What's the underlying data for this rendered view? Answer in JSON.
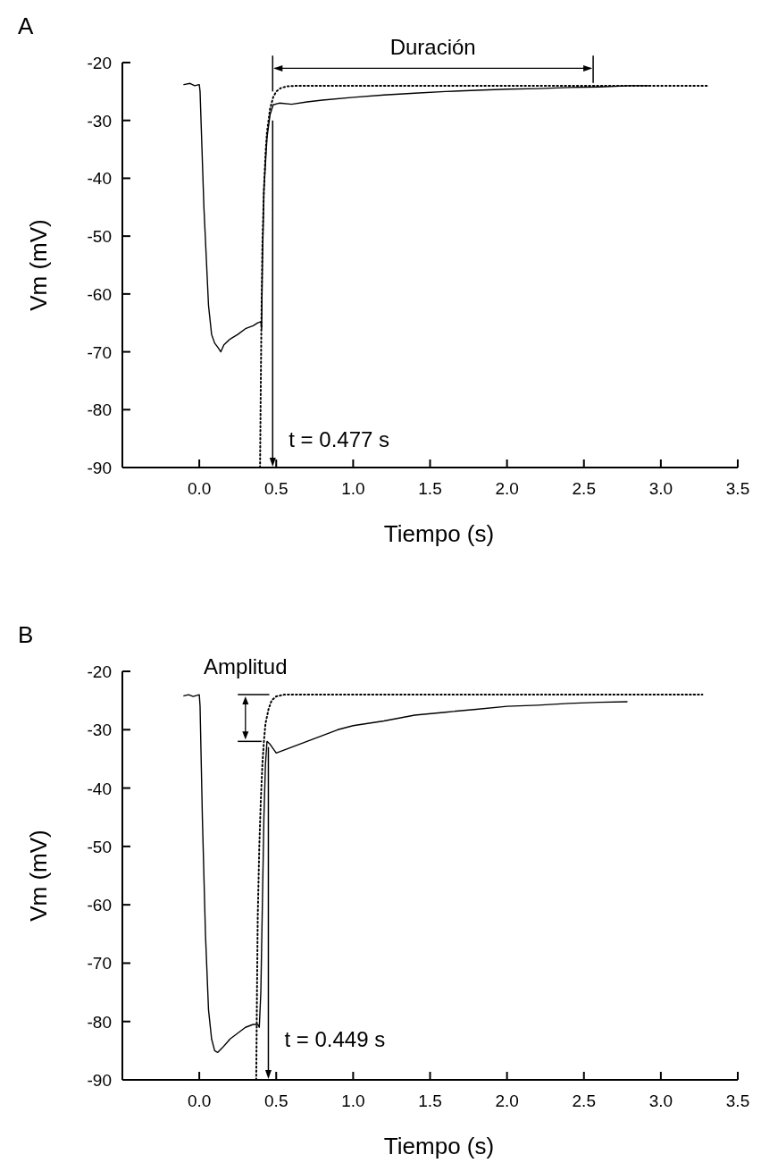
{
  "chart_data": [
    {
      "type": "line",
      "title": "A",
      "xlabel": "Tiempo (s)",
      "ylabel": "Vm (mV)",
      "xlim": [
        -0.5,
        3.5
      ],
      "ylim": [
        -90,
        -20
      ],
      "xticks": [
        {
          "value": 0,
          "label": "0.0"
        },
        {
          "value": 0.5,
          "label": "0.5"
        },
        {
          "value": 1,
          "label": "1.0"
        },
        {
          "value": 1.5,
          "label": "1.5"
        },
        {
          "value": 2,
          "label": "2.0"
        },
        {
          "value": 2.5,
          "label": "2.5"
        },
        {
          "value": 3,
          "label": "3.0"
        },
        {
          "value": 3.5,
          "label": "3.5"
        }
      ],
      "yticks": [
        -90,
        -80,
        -70,
        -60,
        -50,
        -40,
        -30,
        -20
      ],
      "grid": false,
      "marker": "none",
      "annotations": [
        "Duración"
      ],
      "ref_lines": [
        {
          "axis": "x",
          "value": 0.477,
          "label": "t = 0.477 s",
          "color": "#000000"
        }
      ],
      "series": [
        {
          "color": "#000000",
          "line_style": "solid",
          "x": [
            -0.1,
            -0.06,
            -0.03,
            0.0,
            0.005,
            0.03,
            0.06,
            0.08,
            0.1,
            0.12,
            0.14,
            0.16,
            0.2,
            0.25,
            0.3,
            0.35,
            0.38,
            0.4,
            0.405,
            0.41,
            0.42,
            0.44,
            0.46,
            0.48,
            0.52,
            0.6,
            0.7,
            0.8,
            1.0,
            1.2,
            1.4,
            1.6,
            1.8,
            2.0,
            2.2,
            2.4,
            2.6,
            2.8,
            2.92
          ],
          "values": [
            -23.8,
            -23.6,
            -24.0,
            -23.8,
            -25,
            -45,
            -62,
            -67,
            -68.5,
            -69.2,
            -70,
            -68.8,
            -67.8,
            -67,
            -66,
            -65.5,
            -65,
            -64.8,
            -66,
            -55,
            -42,
            -33,
            -29,
            -27.3,
            -27,
            -27.2,
            -26.8,
            -26.5,
            -26,
            -25.6,
            -25.3,
            -25,
            -24.8,
            -24.6,
            -24.5,
            -24.3,
            -24.2,
            -24,
            -24
          ]
        },
        {
          "color": "#000000",
          "line_style": "dotted",
          "x": [
            0.395,
            0.4,
            0.405,
            0.41,
            0.42,
            0.43,
            0.44,
            0.46,
            0.48,
            0.5,
            0.53,
            0.57,
            0.65,
            0.8,
            3.3
          ],
          "values": [
            -90,
            -75,
            -62,
            -52,
            -42,
            -36,
            -32,
            -28,
            -26,
            -25,
            -24.4,
            -24.1,
            -24,
            -24,
            -24
          ]
        }
      ]
    },
    {
      "type": "line",
      "title": "B",
      "xlabel": "Tiempo (s)",
      "ylabel": "Vm (mV)",
      "xlim": [
        -0.5,
        3.5
      ],
      "ylim": [
        -90,
        -20
      ],
      "xticks": [
        {
          "value": 0,
          "label": "0.0"
        },
        {
          "value": 0.5,
          "label": "0.5"
        },
        {
          "value": 1,
          "label": "1.0"
        },
        {
          "value": 1.5,
          "label": "1.5"
        },
        {
          "value": 2,
          "label": "2.0"
        },
        {
          "value": 2.5,
          "label": "2.5"
        },
        {
          "value": 3,
          "label": "3.0"
        },
        {
          "value": 3.5,
          "label": "3.5"
        }
      ],
      "yticks": [
        -90,
        -80,
        -70,
        -60,
        -50,
        -40,
        -30,
        -20
      ],
      "grid": false,
      "marker": "none",
      "annotations": [
        "Amplitud"
      ],
      "ref_lines": [
        {
          "axis": "x",
          "value": 0.449,
          "label": "t = 0.449 s",
          "color": "#000000"
        }
      ],
      "series": [
        {
          "color": "#000000",
          "line_style": "solid",
          "x": [
            -0.1,
            -0.07,
            -0.04,
            0.0,
            0.005,
            0.02,
            0.04,
            0.06,
            0.08,
            0.1,
            0.12,
            0.15,
            0.2,
            0.25,
            0.3,
            0.35,
            0.38,
            0.39,
            0.4,
            0.41,
            0.42,
            0.43,
            0.44,
            0.46,
            0.5,
            0.55,
            0.6,
            0.7,
            0.8,
            0.9,
            1.0,
            1.2,
            1.4,
            1.6,
            1.8,
            2.0,
            2.2,
            2.4,
            2.6,
            2.78
          ],
          "values": [
            -24.2,
            -24.0,
            -24.3,
            -24,
            -26,
            -45,
            -65,
            -78,
            -83,
            -85,
            -85.3,
            -84.5,
            -83,
            -82,
            -81,
            -80.5,
            -80.5,
            -81,
            -75,
            -60,
            -45,
            -36,
            -32,
            -32.5,
            -34,
            -33.5,
            -33,
            -32,
            -31,
            -30,
            -29.3,
            -28.5,
            -27.5,
            -27,
            -26.5,
            -26,
            -25.8,
            -25.5,
            -25.3,
            -25.2
          ]
        },
        {
          "color": "#000000",
          "line_style": "dotted",
          "x": [
            0.37,
            0.375,
            0.38,
            0.39,
            0.4,
            0.41,
            0.42,
            0.43,
            0.45,
            0.47,
            0.5,
            0.55,
            0.65,
            3.27
          ],
          "values": [
            -90,
            -75,
            -62,
            -50,
            -42,
            -36,
            -32,
            -29,
            -26.5,
            -25,
            -24.3,
            -24,
            -24,
            -24
          ]
        }
      ]
    }
  ]
}
